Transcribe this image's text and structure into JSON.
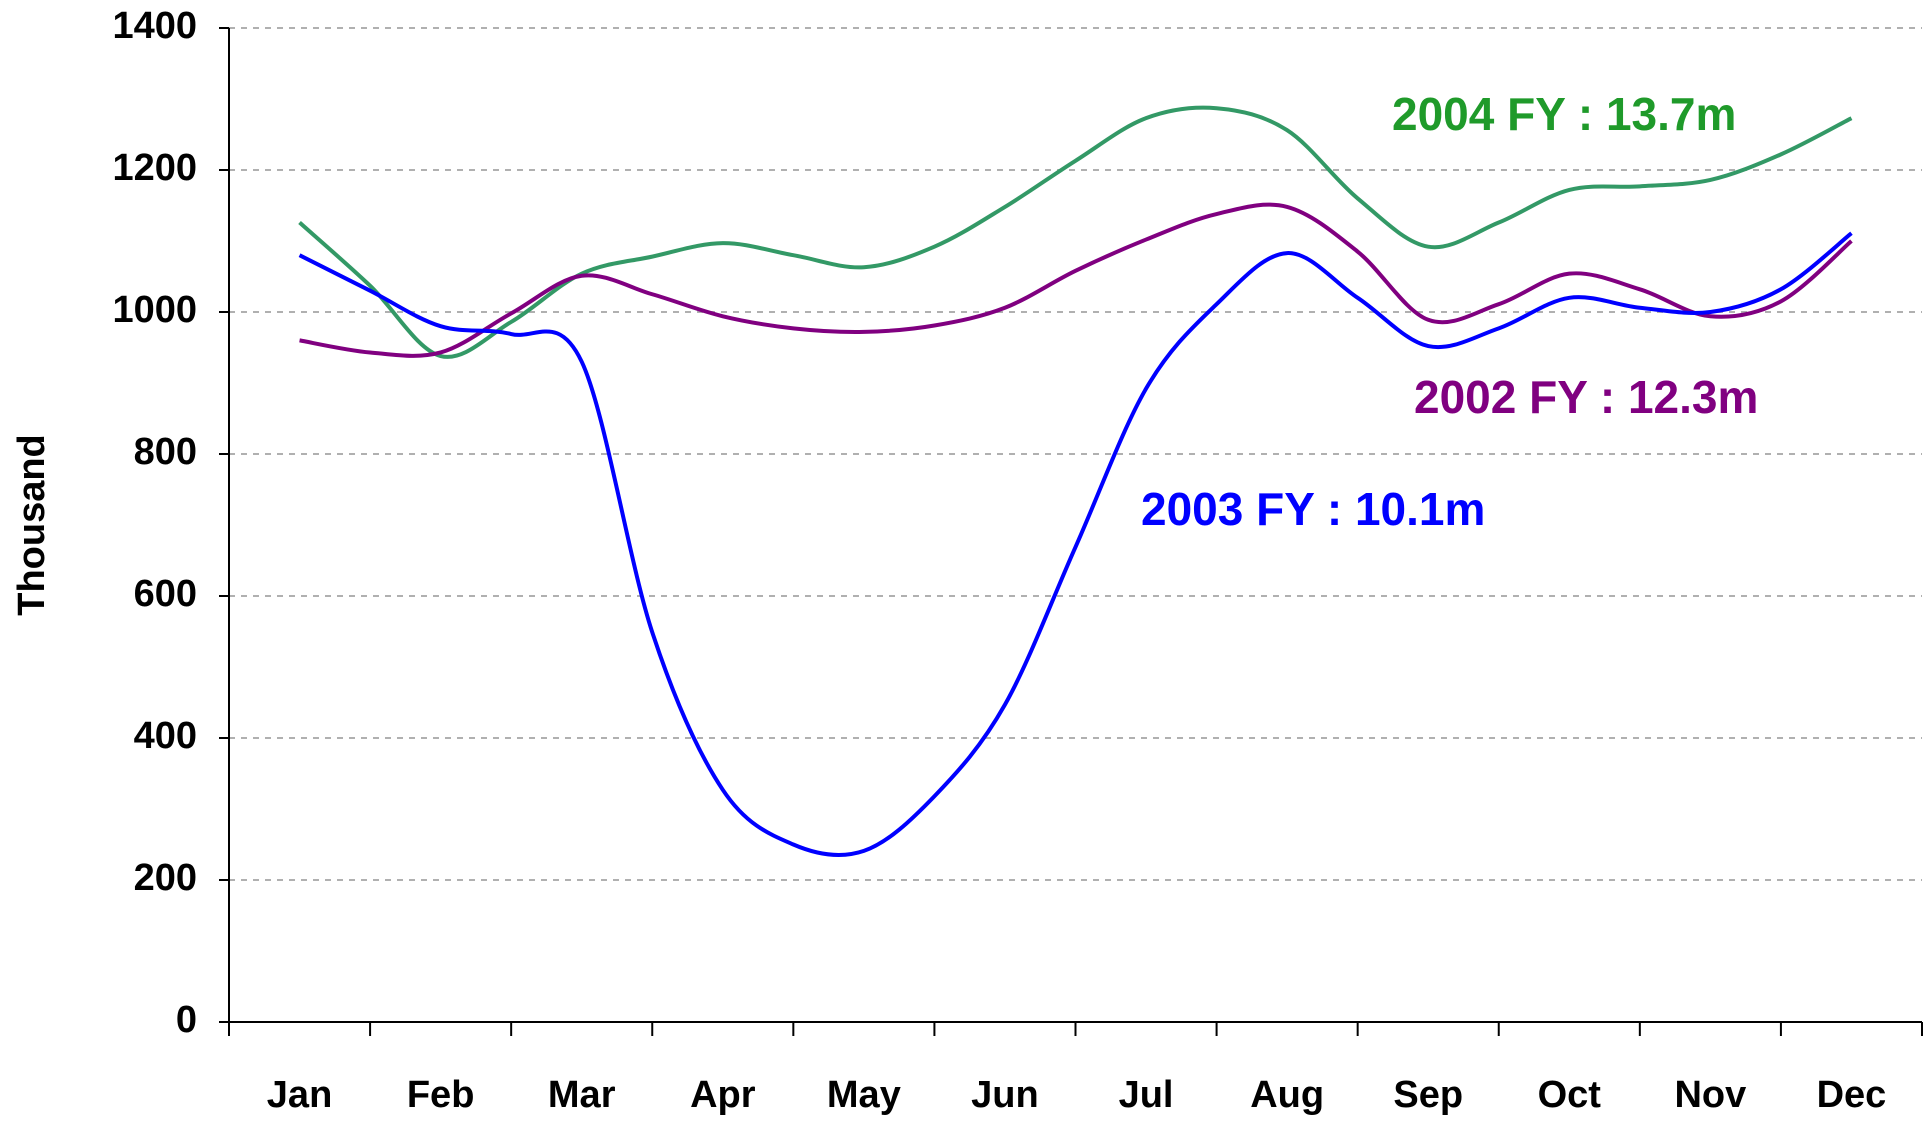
{
  "chart_data": {
    "type": "line",
    "y_label": "Thousand",
    "categories": [
      "Jan",
      null,
      "Feb",
      null,
      "Mar",
      null,
      "Apr",
      null,
      "May",
      null,
      "Jun",
      null,
      "Jul",
      null,
      "Aug",
      null,
      "Sep",
      null,
      "Oct",
      null,
      "Nov",
      null,
      "Dec"
    ],
    "series": [
      {
        "name": "2004",
        "color": "#339966",
        "values": [
          1126,
          1037,
          938,
          986,
          1054,
          1078,
          1097,
          1080,
          1063,
          1092,
          1148,
          1213,
          1273,
          1287,
          1256,
          1160,
          1092,
          1126,
          1172,
          1177,
          1186,
          1222,
          1273
        ]
      },
      {
        "name": "2002",
        "color": "#800080",
        "values": [
          960,
          943,
          943,
          998,
          1051,
          1025,
          994,
          977,
          972,
          981,
          1006,
          1058,
          1102,
          1138,
          1148,
          1085,
          989,
          1011,
          1054,
          1032,
          994,
          1015,
          1100
        ]
      },
      {
        "name": "2003",
        "color": "#0000ff",
        "values": [
          1080,
          1030,
          980,
          969,
          930,
          549,
          327,
          250,
          241,
          318,
          447,
          669,
          892,
          1011,
          1083,
          1020,
          952,
          977,
          1020,
          1006,
          1000,
          1032,
          1111
        ]
      }
    ],
    "annotations": [
      {
        "text": "2004 FY : 13.7m",
        "color": "#1f9a2a"
      },
      {
        "text": "2002 FY : 12.3m",
        "color": "#800080"
      },
      {
        "text": "2003 FY : 10.1m",
        "color": "#0000ff"
      }
    ],
    "ylim": [
      0,
      1400
    ],
    "yticks": [
      0,
      200,
      400,
      600,
      800,
      1000,
      1200,
      1400
    ],
    "grid": true
  }
}
